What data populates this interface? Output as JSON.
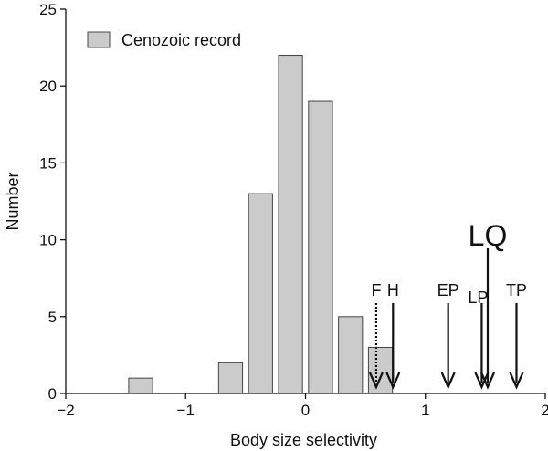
{
  "chart_data": {
    "type": "bar",
    "xlabel": "Body size selectivity",
    "ylabel": "Number",
    "xlim": [
      -2,
      2
    ],
    "ylim": [
      0,
      25
    ],
    "xticks": [
      -2,
      -1,
      0,
      1,
      2
    ],
    "yticks": [
      0,
      5,
      10,
      15,
      20,
      25
    ],
    "grid": false,
    "legend_position": "top-left",
    "series": [
      {
        "name": "Cenozoic record",
        "color": "#cbcbcb",
        "bin_width": 0.25,
        "bars": [
          {
            "x": -1.375,
            "value": 1
          },
          {
            "x": -0.625,
            "value": 2
          },
          {
            "x": -0.375,
            "value": 13
          },
          {
            "x": -0.125,
            "value": 22
          },
          {
            "x": 0.125,
            "value": 19
          },
          {
            "x": 0.375,
            "value": 5
          },
          {
            "x": 0.625,
            "value": 3
          }
        ]
      }
    ],
    "annotations": [
      {
        "label": "F",
        "x": 0.59,
        "style": "dotted",
        "size": "normal"
      },
      {
        "label": "H",
        "x": 0.73,
        "style": "solid",
        "size": "normal"
      },
      {
        "label": "EP",
        "x": 1.19,
        "style": "solid",
        "size": "normal"
      },
      {
        "label": "LP",
        "x": 1.47,
        "style": "solid",
        "size": "normal"
      },
      {
        "label": "LQ",
        "x": 1.52,
        "style": "solid",
        "size": "large"
      },
      {
        "label": "TP",
        "x": 1.76,
        "style": "solid",
        "size": "normal"
      }
    ]
  }
}
